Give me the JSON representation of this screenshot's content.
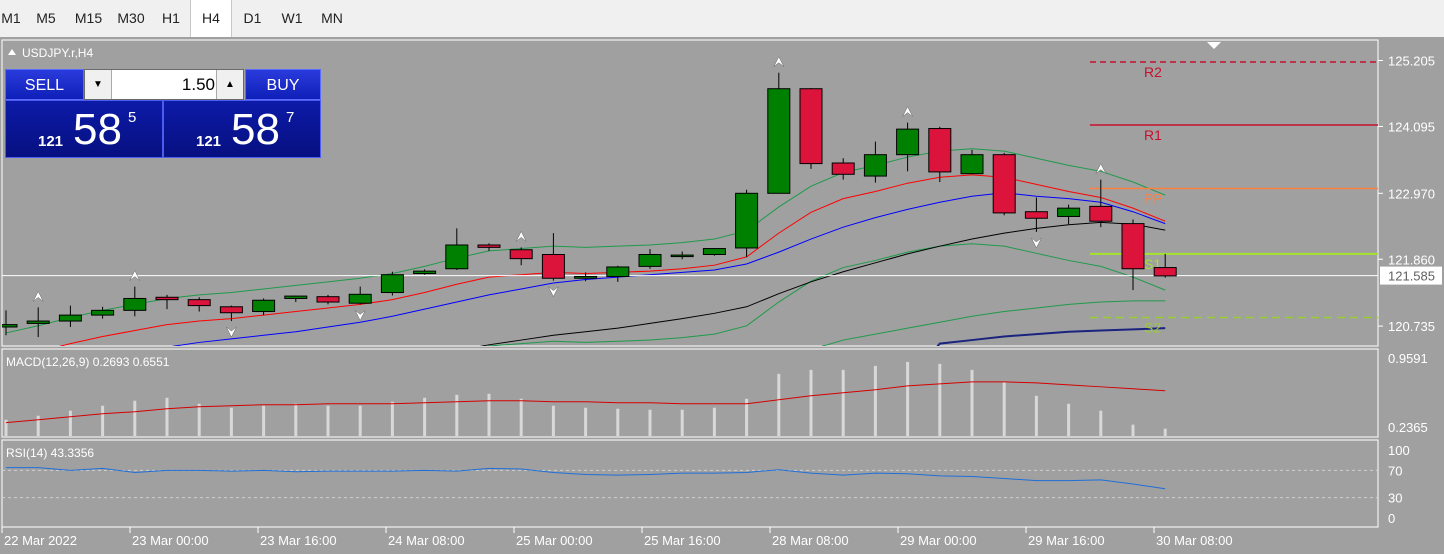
{
  "timeframes": [
    "M1",
    "M5",
    "M15",
    "M30",
    "H1",
    "H4",
    "D1",
    "W1",
    "MN"
  ],
  "active_timeframe": "H4",
  "symbol_title": "USDJPY.r,H4",
  "trade": {
    "sell_label": "SELL",
    "buy_label": "BUY",
    "lot": "1.50",
    "sell_big": "121",
    "sell_main": "58",
    "sell_pip": "5",
    "buy_big": "121",
    "buy_main": "58",
    "buy_pip": "7"
  },
  "price_axis": [
    "125.205",
    "124.095",
    "122.970",
    "121.860",
    "120.735"
  ],
  "current_price": "121.585",
  "pivots": {
    "R2": "R2",
    "R1": "R1",
    "PP": "PP",
    "S1": "S1",
    "S2": "S2"
  },
  "macd": {
    "label": "MACD(12,26,9) 0.2693 0.6551",
    "max": "0.9591",
    "min": "0.2365"
  },
  "rsi": {
    "label": "RSI(14) 43.3356",
    "levels": [
      "100",
      "70",
      "30",
      "0"
    ]
  },
  "time_axis": [
    "22 Mar 2022",
    "23 Mar 00:00",
    "23 Mar 16:00",
    "24 Mar 08:00",
    "25 Mar 00:00",
    "25 Mar 16:00",
    "28 Mar 08:00",
    "29 Mar 00:00",
    "29 Mar 16:00",
    "30 Mar 08:00"
  ],
  "colors": {
    "bull": "#008000",
    "bear": "#dc143c",
    "bg": "#a0a0a0",
    "r_line": "#c8102e",
    "pp_line": "#ff7f3f",
    "s_line": "#9acd32",
    "ma_red": "#ff0000",
    "ma_blue": "#0000ff",
    "ma_black": "#000000",
    "envelope": "#1f9a4a"
  },
  "chart_data": {
    "type": "candlestick",
    "candles": [
      {
        "o": 120.72,
        "h": 121.0,
        "l": 120.58,
        "c": 120.76
      },
      {
        "o": 120.78,
        "h": 121.05,
        "l": 120.55,
        "c": 120.82
      },
      {
        "o": 120.82,
        "h": 121.08,
        "l": 120.72,
        "c": 120.92
      },
      {
        "o": 120.92,
        "h": 121.06,
        "l": 120.86,
        "c": 121.0
      },
      {
        "o": 121.0,
        "h": 121.4,
        "l": 120.9,
        "c": 121.2
      },
      {
        "o": 121.22,
        "h": 121.26,
        "l": 121.02,
        "c": 121.18
      },
      {
        "o": 121.18,
        "h": 121.22,
        "l": 120.98,
        "c": 121.08
      },
      {
        "o": 121.06,
        "h": 121.08,
        "l": 120.82,
        "c": 120.96
      },
      {
        "o": 120.98,
        "h": 121.2,
        "l": 120.92,
        "c": 121.17
      },
      {
        "o": 121.2,
        "h": 121.25,
        "l": 121.14,
        "c": 121.24
      },
      {
        "o": 121.23,
        "h": 121.26,
        "l": 121.1,
        "c": 121.14
      },
      {
        "o": 121.12,
        "h": 121.4,
        "l": 121.1,
        "c": 121.27
      },
      {
        "o": 121.3,
        "h": 121.65,
        "l": 121.25,
        "c": 121.6
      },
      {
        "o": 121.62,
        "h": 121.69,
        "l": 121.6,
        "c": 121.66
      },
      {
        "o": 121.7,
        "h": 122.38,
        "l": 121.68,
        "c": 122.1
      },
      {
        "o": 122.1,
        "h": 122.13,
        "l": 122.0,
        "c": 122.06
      },
      {
        "o": 122.02,
        "h": 122.06,
        "l": 121.76,
        "c": 121.87
      },
      {
        "o": 121.94,
        "h": 122.3,
        "l": 121.5,
        "c": 121.54
      },
      {
        "o": 121.54,
        "h": 121.64,
        "l": 121.49,
        "c": 121.57
      },
      {
        "o": 121.57,
        "h": 121.75,
        "l": 121.48,
        "c": 121.73
      },
      {
        "o": 121.74,
        "h": 122.03,
        "l": 121.7,
        "c": 121.94
      },
      {
        "o": 121.91,
        "h": 121.99,
        "l": 121.86,
        "c": 121.93
      },
      {
        "o": 121.94,
        "h": 122.05,
        "l": 121.92,
        "c": 122.04
      },
      {
        "o": 122.05,
        "h": 123.03,
        "l": 121.9,
        "c": 122.97
      },
      {
        "o": 122.97,
        "h": 125.0,
        "l": 122.97,
        "c": 124.73
      },
      {
        "o": 124.73,
        "h": 124.74,
        "l": 123.38,
        "c": 123.47
      },
      {
        "o": 123.48,
        "h": 123.56,
        "l": 123.2,
        "c": 123.29
      },
      {
        "o": 123.26,
        "h": 123.84,
        "l": 123.15,
        "c": 123.62
      },
      {
        "o": 123.62,
        "h": 124.16,
        "l": 123.34,
        "c": 124.05
      },
      {
        "o": 124.06,
        "h": 124.09,
        "l": 123.16,
        "c": 123.33
      },
      {
        "o": 123.3,
        "h": 123.7,
        "l": 123.3,
        "c": 123.62
      },
      {
        "o": 123.62,
        "h": 123.65,
        "l": 122.6,
        "c": 122.64
      },
      {
        "o": 122.66,
        "h": 122.9,
        "l": 122.32,
        "c": 122.55
      },
      {
        "o": 122.58,
        "h": 122.78,
        "l": 122.45,
        "c": 122.72
      },
      {
        "o": 122.75,
        "h": 123.2,
        "l": 122.4,
        "c": 122.5
      },
      {
        "o": 122.46,
        "h": 122.53,
        "l": 121.34,
        "c": 121.7
      },
      {
        "o": 121.72,
        "h": 121.95,
        "l": 121.55,
        "c": 121.58
      }
    ],
    "ma_red": [
      120.18,
      120.3,
      120.44,
      120.56,
      120.66,
      120.76,
      120.82,
      120.86,
      120.92,
      120.98,
      121.04,
      121.1,
      121.18,
      121.3,
      121.44,
      121.56,
      121.6,
      121.64,
      121.62,
      121.64,
      121.66,
      121.7,
      121.76,
      121.9,
      122.3,
      122.65,
      122.88,
      123.0,
      123.14,
      123.24,
      123.28,
      123.24,
      123.12,
      123.0,
      122.9,
      122.72,
      122.5
    ],
    "ma_blue": [
      119.9,
      119.98,
      120.08,
      120.2,
      120.3,
      120.38,
      120.46,
      120.52,
      120.58,
      120.64,
      120.72,
      120.8,
      120.9,
      121.02,
      121.14,
      121.26,
      121.36,
      121.46,
      121.52,
      121.56,
      121.6,
      121.64,
      121.68,
      121.78,
      121.98,
      122.2,
      122.4,
      122.56,
      122.7,
      122.82,
      122.92,
      122.98,
      122.92,
      122.88,
      122.82,
      122.66,
      122.46
    ],
    "ma_black": [
      119.6,
      119.65,
      119.7,
      119.75,
      119.8,
      119.84,
      119.88,
      119.92,
      119.96,
      120.0,
      120.04,
      120.08,
      120.14,
      120.22,
      120.32,
      120.42,
      120.5,
      120.58,
      120.64,
      120.7,
      120.78,
      120.86,
      120.95,
      121.06,
      121.28,
      121.48,
      121.65,
      121.8,
      121.95,
      122.08,
      122.2,
      122.3,
      122.38,
      122.44,
      122.48,
      122.45,
      122.35
    ],
    "env_upper": [
      120.62,
      120.74,
      120.88,
      121.0,
      121.1,
      121.2,
      121.26,
      121.3,
      121.36,
      121.42,
      121.48,
      121.54,
      121.62,
      121.74,
      121.88,
      122.0,
      122.04,
      122.08,
      122.06,
      122.08,
      122.1,
      122.14,
      122.2,
      122.34,
      122.74,
      123.09,
      123.32,
      123.44,
      123.58,
      123.68,
      123.72,
      123.68,
      123.56,
      123.44,
      123.34,
      123.16,
      122.94
    ],
    "env_lower": [
      119.12,
      119.2,
      119.3,
      119.4,
      119.5,
      119.6,
      119.66,
      119.7,
      119.76,
      119.82,
      119.88,
      119.94,
      120.02,
      120.14,
      120.28,
      120.4,
      120.44,
      120.48,
      120.46,
      120.48,
      120.5,
      120.54,
      120.6,
      120.74,
      121.14,
      121.49,
      121.72,
      121.84,
      121.98,
      122.08,
      122.12,
      122.08,
      121.96,
      121.84,
      121.74,
      121.56,
      121.34
    ],
    "env2_upper": [
      119.0,
      119.02,
      119.04,
      119.06,
      119.08,
      119.1,
      119.12,
      119.14,
      119.16,
      119.18,
      119.2,
      119.22,
      119.26,
      119.32,
      119.38,
      119.44,
      119.5,
      119.56,
      119.62,
      119.68,
      119.74,
      119.8,
      119.86,
      119.94,
      120.14,
      120.34,
      120.5,
      120.6,
      120.7,
      120.8,
      120.9,
      120.98,
      121.04,
      121.1,
      121.14,
      121.16,
      121.16
    ],
    "env2_lower": [
      119.0,
      119.0,
      119.0,
      119.0,
      119.0,
      119.0,
      119.0,
      119.0,
      119.0,
      119.0,
      119.0,
      119.0,
      119.0,
      119.0,
      119.0,
      119.0,
      119.0,
      119.0,
      119.0,
      119.0,
      119.0,
      119.0,
      119.0,
      119.0,
      119.0,
      119.0,
      119.0,
      119.0,
      119.0,
      119.0,
      119.0,
      119.0,
      119.0,
      119.0,
      119.0,
      119.0,
      119.0
    ],
    "ma_navy": [
      119.8,
      119.8,
      119.8,
      119.8,
      119.8,
      119.8,
      119.8,
      119.8,
      119.8,
      119.8,
      119.8,
      119.8,
      119.8,
      119.8,
      119.8,
      119.8,
      119.8,
      119.8,
      119.8,
      119.8,
      119.8,
      119.8,
      119.8,
      119.8,
      119.8,
      119.8,
      119.8,
      119.8,
      119.8,
      120.44,
      120.5,
      120.56,
      120.6,
      120.64,
      120.66,
      120.68,
      120.7
    ],
    "pivot_levels": {
      "R2": 125.18,
      "R1": 124.12,
      "PP": 123.05,
      "S1": 121.95,
      "S2": 120.88
    },
    "fractals_up": [
      1,
      4,
      16,
      24,
      28,
      34
    ],
    "fractals_down": [
      7,
      11,
      17,
      32
    ],
    "macd_hist": [
      0.36,
      0.4,
      0.45,
      0.5,
      0.55,
      0.58,
      0.52,
      0.48,
      0.5,
      0.52,
      0.5,
      0.5,
      0.54,
      0.58,
      0.61,
      0.62,
      0.57,
      0.5,
      0.48,
      0.47,
      0.46,
      0.46,
      0.48,
      0.57,
      0.82,
      0.86,
      0.86,
      0.9,
      0.94,
      0.92,
      0.86,
      0.74,
      0.6,
      0.52,
      0.45,
      0.31,
      0.27
    ],
    "macd_signal": [
      0.33,
      0.36,
      0.39,
      0.42,
      0.44,
      0.47,
      0.49,
      0.5,
      0.51,
      0.51,
      0.52,
      0.52,
      0.52,
      0.53,
      0.54,
      0.55,
      0.55,
      0.54,
      0.54,
      0.53,
      0.53,
      0.52,
      0.52,
      0.52,
      0.56,
      0.6,
      0.63,
      0.66,
      0.7,
      0.72,
      0.74,
      0.74,
      0.73,
      0.71,
      0.69,
      0.67,
      0.65
    ],
    "macd_ylim": [
      0.2365,
      0.9591
    ],
    "rsi": [
      74,
      74,
      70,
      73,
      67,
      70,
      70,
      69,
      70,
      68,
      69,
      69,
      69,
      70,
      69,
      73,
      72,
      67,
      64,
      63,
      64,
      66,
      66,
      67,
      71,
      66,
      63,
      66,
      65,
      62,
      61,
      58,
      55,
      55,
      56,
      50,
      43
    ],
    "rsi_ylim": [
      0,
      100
    ],
    "ylim": [
      120.4,
      125.55
    ]
  }
}
